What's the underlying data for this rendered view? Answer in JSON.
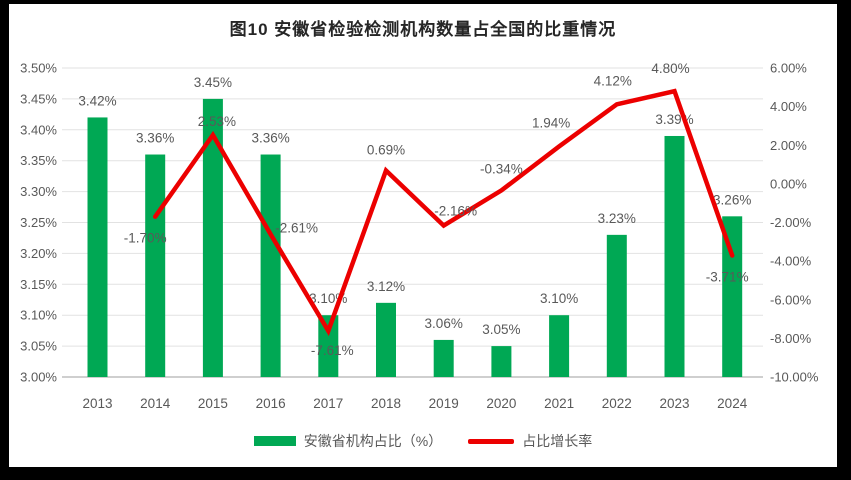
{
  "title": "图10 安徽省检验检测机构数量占全国的比重情况",
  "colors": {
    "bar": "#00A854",
    "line": "#EC0000",
    "grid": "#E2E2E2",
    "axis_line": "#BFBFBF",
    "data_label": "#595959",
    "axis_label": "#595959",
    "title": "#262626",
    "frame": "#000000",
    "background": "#FFFFFF"
  },
  "legend": {
    "items": [
      {
        "label": "安徽省机构占比（%）",
        "marker": "bar-swatch",
        "color": "#00A854"
      },
      {
        "label": "占比增长率",
        "marker": "line-swatch",
        "color": "#EC0000"
      }
    ]
  },
  "chart_data": {
    "type": "combo",
    "title": "图10 安徽省检验检测机构数量占全国的比重情况",
    "categories": [
      "2013",
      "2014",
      "2015",
      "2016",
      "2017",
      "2018",
      "2019",
      "2020",
      "2021",
      "2022",
      "2023",
      "2024"
    ],
    "series": [
      {
        "name": "安徽省机构占比（%）",
        "type": "bar",
        "axis": "left",
        "color": "#00A854",
        "values": [
          3.42,
          3.36,
          3.45,
          3.36,
          3.1,
          3.12,
          3.06,
          3.05,
          3.1,
          3.23,
          3.39,
          3.26
        ],
        "labels": [
          "3.42%",
          "3.36%",
          "3.45%",
          "3.36%",
          "3.10%",
          "3.12%",
          "3.06%",
          "3.05%",
          "3.10%",
          "3.23%",
          "3.39%",
          "3.26%"
        ]
      },
      {
        "name": "占比增长率",
        "type": "line",
        "axis": "right",
        "color": "#EC0000",
        "values": [
          null,
          -1.7,
          2.53,
          -2.61,
          -7.61,
          0.69,
          -2.16,
          -0.34,
          1.94,
          4.12,
          4.8,
          -3.71
        ],
        "labels": [
          null,
          "-1.70%",
          "2.53%",
          "-2.61%",
          "-7.61%",
          "0.69%",
          "-2.16%",
          "-0.34%",
          "1.94%",
          "4.12%",
          "4.80%",
          "-3.71%"
        ]
      }
    ],
    "left_axis": {
      "min": 3.0,
      "max": 3.5,
      "step": 0.05,
      "tick_labels": [
        "3.00%",
        "3.05%",
        "3.10%",
        "3.15%",
        "3.20%",
        "3.25%",
        "3.30%",
        "3.35%",
        "3.40%",
        "3.45%",
        "3.50%"
      ]
    },
    "right_axis": {
      "min": -10,
      "max": 6,
      "step": 2,
      "tick_labels": [
        "-10.00%",
        "-8.00%",
        "-6.00%",
        "-4.00%",
        "-2.00%",
        "0.00%",
        "2.00%",
        "4.00%",
        "6.00%"
      ]
    },
    "grid": true,
    "legend_position": "bottom"
  }
}
